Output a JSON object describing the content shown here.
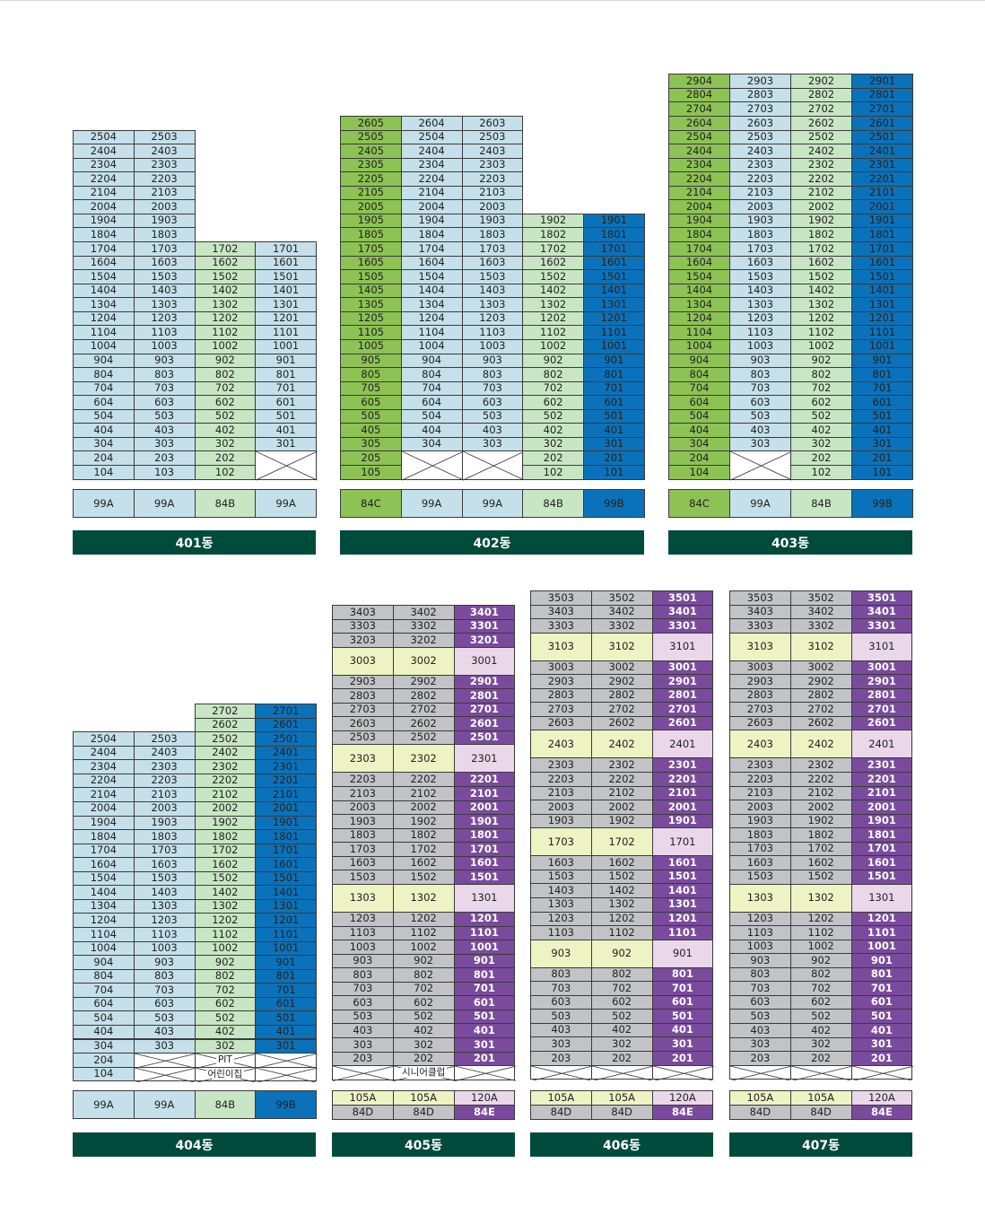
{
  "colors": {
    "lightblue": "#c5e0ea",
    "green": "#8dc254",
    "lightgreen": "#c8e6c3",
    "blue": "#0a72ba",
    "gray": "#c2c3c6",
    "purple": "#7a4b9d",
    "lightyellow": "#eef3c3",
    "lightpurple": "#ead7ea",
    "bar": "#004b3c"
  },
  "buildings": [
    {
      "label": "401동",
      "rows": [
        [
          "2504",
          "2503",
          "",
          ""
        ],
        [
          "2404",
          "2403",
          "",
          ""
        ],
        [
          "2304",
          "2303",
          "",
          ""
        ],
        [
          "2204",
          "2203",
          "",
          ""
        ],
        [
          "2104",
          "2103",
          "",
          ""
        ],
        [
          "2004",
          "2003",
          "",
          ""
        ],
        [
          "1904",
          "1903",
          "",
          ""
        ],
        [
          "1804",
          "1803",
          "",
          ""
        ],
        [
          "1704",
          "1703",
          "1702",
          "1701"
        ],
        [
          "1604",
          "1603",
          "1602",
          "1601"
        ],
        [
          "1504",
          "1503",
          "1502",
          "1501"
        ],
        [
          "1404",
          "1403",
          "1402",
          "1401"
        ],
        [
          "1304",
          "1303",
          "1302",
          "1301"
        ],
        [
          "1204",
          "1203",
          "1202",
          "1201"
        ],
        [
          "1104",
          "1103",
          "1102",
          "1101"
        ],
        [
          "1004",
          "1003",
          "1002",
          "1001"
        ],
        [
          "904",
          "903",
          "902",
          "901"
        ],
        [
          "804",
          "803",
          "802",
          "801"
        ],
        [
          "704",
          "703",
          "702",
          "701"
        ],
        [
          "604",
          "603",
          "602",
          "601"
        ],
        [
          "504",
          "503",
          "502",
          "501"
        ],
        [
          "404",
          "403",
          "402",
          "401"
        ],
        [
          "304",
          "303",
          "302",
          "301"
        ],
        [
          "204",
          "203",
          "202",
          "X"
        ],
        [
          "104",
          "103",
          "102",
          ""
        ]
      ],
      "types": [
        "99A",
        "99A",
        "84B",
        "99A"
      ]
    },
    {
      "label": "402동",
      "rows": [
        [
          "2605",
          "2604",
          "2603",
          "",
          ""
        ],
        [
          "2505",
          "2504",
          "2503",
          "",
          ""
        ],
        [
          "2405",
          "2404",
          "2403",
          "",
          ""
        ],
        [
          "2305",
          "2304",
          "2303",
          "",
          ""
        ],
        [
          "2205",
          "2204",
          "2203",
          "",
          ""
        ],
        [
          "2105",
          "2104",
          "2103",
          "",
          ""
        ],
        [
          "2005",
          "2004",
          "2003",
          "",
          ""
        ],
        [
          "1905",
          "1904",
          "1903",
          "1902",
          "1901"
        ],
        [
          "1805",
          "1804",
          "1803",
          "1802",
          "1801"
        ],
        [
          "1705",
          "1704",
          "1703",
          "1702",
          "1701"
        ],
        [
          "1605",
          "1604",
          "1603",
          "1602",
          "1601"
        ],
        [
          "1505",
          "1504",
          "1503",
          "1502",
          "1501"
        ],
        [
          "1405",
          "1404",
          "1403",
          "1402",
          "1401"
        ],
        [
          "1305",
          "1304",
          "1303",
          "1302",
          "1301"
        ],
        [
          "1205",
          "1204",
          "1203",
          "1202",
          "1201"
        ],
        [
          "1105",
          "1104",
          "1103",
          "1102",
          "1101"
        ],
        [
          "1005",
          "1004",
          "1003",
          "1002",
          "1001"
        ],
        [
          "905",
          "904",
          "903",
          "902",
          "901"
        ],
        [
          "805",
          "804",
          "803",
          "802",
          "801"
        ],
        [
          "705",
          "704",
          "703",
          "702",
          "701"
        ],
        [
          "605",
          "604",
          "603",
          "602",
          "601"
        ],
        [
          "505",
          "504",
          "503",
          "502",
          "501"
        ],
        [
          "405",
          "404",
          "403",
          "402",
          "401"
        ],
        [
          "305",
          "304",
          "303",
          "302",
          "301"
        ],
        [
          "205",
          "X",
          "X",
          "202",
          "201"
        ],
        [
          "105",
          "",
          "",
          "102",
          "101"
        ]
      ],
      "types": [
        "84C",
        "99A",
        "99A",
        "84B",
        "99B"
      ]
    },
    {
      "label": "403동",
      "rows": [
        [
          "2904",
          "2903",
          "2902",
          "2901"
        ],
        [
          "2804",
          "2803",
          "2802",
          "2801"
        ],
        [
          "2704",
          "2703",
          "2702",
          "2701"
        ],
        [
          "2604",
          "2603",
          "2602",
          "2601"
        ],
        [
          "2504",
          "2503",
          "2502",
          "2501"
        ],
        [
          "2404",
          "2403",
          "2402",
          "2401"
        ],
        [
          "2304",
          "2303",
          "2302",
          "2301"
        ],
        [
          "2204",
          "2203",
          "2202",
          "2201"
        ],
        [
          "2104",
          "2103",
          "2102",
          "2101"
        ],
        [
          "2004",
          "2003",
          "2002",
          "2001"
        ],
        [
          "1904",
          "1903",
          "1902",
          "1901"
        ],
        [
          "1804",
          "1803",
          "1802",
          "1801"
        ],
        [
          "1704",
          "1703",
          "1702",
          "1701"
        ],
        [
          "1604",
          "1603",
          "1602",
          "1601"
        ],
        [
          "1504",
          "1503",
          "1502",
          "1501"
        ],
        [
          "1404",
          "1403",
          "1402",
          "1401"
        ],
        [
          "1304",
          "1303",
          "1302",
          "1301"
        ],
        [
          "1204",
          "1203",
          "1202",
          "1201"
        ],
        [
          "1104",
          "1103",
          "1102",
          "1101"
        ],
        [
          "1004",
          "1003",
          "1002",
          "1001"
        ],
        [
          "904",
          "903",
          "902",
          "901"
        ],
        [
          "804",
          "803",
          "802",
          "801"
        ],
        [
          "704",
          "703",
          "702",
          "701"
        ],
        [
          "604",
          "603",
          "602",
          "601"
        ],
        [
          "504",
          "503",
          "502",
          "501"
        ],
        [
          "404",
          "403",
          "402",
          "401"
        ],
        [
          "304",
          "303",
          "302",
          "301"
        ],
        [
          "204",
          "X",
          "202",
          "201"
        ],
        [
          "104",
          "",
          "102",
          "101"
        ]
      ],
      "types": [
        "84C",
        "99A",
        "84B",
        "99B"
      ]
    },
    {
      "label": "404동",
      "rows": [
        [
          "",
          "",
          "2702",
          "2701"
        ],
        [
          "",
          "",
          "2602",
          "2601"
        ],
        [
          "2504",
          "2503",
          "2502",
          "2501"
        ],
        [
          "2404",
          "2403",
          "2402",
          "2401"
        ],
        [
          "2304",
          "2303",
          "2302",
          "2301"
        ],
        [
          "2204",
          "2203",
          "2202",
          "2201"
        ],
        [
          "2104",
          "2103",
          "2102",
          "2101"
        ],
        [
          "2004",
          "2003",
          "2002",
          "2001"
        ],
        [
          "1904",
          "1903",
          "1902",
          "1901"
        ],
        [
          "1804",
          "1803",
          "1802",
          "1801"
        ],
        [
          "1704",
          "1703",
          "1702",
          "1701"
        ],
        [
          "1604",
          "1603",
          "1602",
          "1601"
        ],
        [
          "1504",
          "1503",
          "1502",
          "1501"
        ],
        [
          "1404",
          "1403",
          "1402",
          "1401"
        ],
        [
          "1304",
          "1303",
          "1302",
          "1301"
        ],
        [
          "1204",
          "1203",
          "1202",
          "1201"
        ],
        [
          "1104",
          "1103",
          "1102",
          "1101"
        ],
        [
          "1004",
          "1003",
          "1002",
          "1001"
        ],
        [
          "904",
          "903",
          "902",
          "901"
        ],
        [
          "804",
          "803",
          "802",
          "801"
        ],
        [
          "704",
          "703",
          "702",
          "701"
        ],
        [
          "604",
          "603",
          "602",
          "601"
        ],
        [
          "504",
          "503",
          "502",
          "501"
        ],
        [
          "404",
          "403",
          "402",
          "401"
        ],
        [
          "304",
          "303",
          "302",
          "301"
        ]
      ],
      "pit": "PIT",
      "daycare": "어린이집",
      "first_rows": [
        "204",
        "104"
      ],
      "types": [
        "99A",
        "99A",
        "84B",
        "99B"
      ]
    },
    {
      "label": "405동",
      "rows": [
        [
          "3403",
          "3402",
          "3401"
        ],
        [
          "3303",
          "3302",
          "3301"
        ],
        [
          "3203",
          "3202",
          "3201"
        ],
        [
          "3003",
          "3002",
          "3001"
        ],
        [
          "2903",
          "2902",
          "2901"
        ],
        [
          "2803",
          "2802",
          "2801"
        ],
        [
          "2703",
          "2702",
          "2701"
        ],
        [
          "2603",
          "2602",
          "2601"
        ],
        [
          "2503",
          "2502",
          "2501"
        ],
        [
          "2303",
          "2302",
          "2301"
        ],
        [
          "2203",
          "2202",
          "2201"
        ],
        [
          "2103",
          "2102",
          "2101"
        ],
        [
          "2003",
          "2002",
          "2001"
        ],
        [
          "1903",
          "1902",
          "1901"
        ],
        [
          "1803",
          "1802",
          "1801"
        ],
        [
          "1703",
          "1702",
          "1701"
        ],
        [
          "1603",
          "1602",
          "1601"
        ],
        [
          "1503",
          "1502",
          "1501"
        ],
        [
          "1303",
          "1302",
          "1301"
        ],
        [
          "1203",
          "1202",
          "1201"
        ],
        [
          "1103",
          "1102",
          "1101"
        ],
        [
          "1003",
          "1002",
          "1001"
        ],
        [
          "903",
          "902",
          "901"
        ],
        [
          "803",
          "802",
          "801"
        ],
        [
          "703",
          "702",
          "701"
        ],
        [
          "603",
          "602",
          "601"
        ],
        [
          "503",
          "502",
          "501"
        ],
        [
          "403",
          "402",
          "401"
        ],
        [
          "303",
          "302",
          "301"
        ],
        [
          "203",
          "202",
          "201"
        ]
      ],
      "senior": "시니어클럽",
      "types_top": [
        "105A",
        "105A",
        "120A"
      ],
      "types_bottom": [
        "84D",
        "84D",
        "84E"
      ]
    },
    {
      "label": "406동",
      "rows": [
        [
          "3503",
          "3502",
          "3501"
        ],
        [
          "3403",
          "3402",
          "3401"
        ],
        [
          "3303",
          "3302",
          "3301"
        ],
        [
          "3103",
          "3102",
          "3101"
        ],
        [
          "3003",
          "3002",
          "3001"
        ],
        [
          "2903",
          "2902",
          "2901"
        ],
        [
          "2803",
          "2802",
          "2801"
        ],
        [
          "2703",
          "2702",
          "2701"
        ],
        [
          "2603",
          "2602",
          "2601"
        ],
        [
          "2403",
          "2402",
          "2401"
        ],
        [
          "2303",
          "2302",
          "2301"
        ],
        [
          "2203",
          "2202",
          "2201"
        ],
        [
          "2103",
          "2102",
          "2101"
        ],
        [
          "2003",
          "2002",
          "2001"
        ],
        [
          "1903",
          "1902",
          "1901"
        ],
        [
          "1703",
          "1702",
          "1701"
        ],
        [
          "1603",
          "1602",
          "1601"
        ],
        [
          "1503",
          "1502",
          "1501"
        ],
        [
          "1403",
          "1402",
          "1401"
        ],
        [
          "1303",
          "1302",
          "1301"
        ],
        [
          "1203",
          "1202",
          "1201"
        ],
        [
          "1103",
          "1102",
          "1101"
        ],
        [
          "903",
          "902",
          "901"
        ],
        [
          "803",
          "802",
          "801"
        ],
        [
          "703",
          "702",
          "701"
        ],
        [
          "603",
          "602",
          "601"
        ],
        [
          "503",
          "502",
          "501"
        ],
        [
          "403",
          "402",
          "401"
        ],
        [
          "303",
          "302",
          "301"
        ],
        [
          "203",
          "202",
          "201"
        ]
      ],
      "types_top": [
        "105A",
        "105A",
        "120A"
      ],
      "types_bottom": [
        "84D",
        "84D",
        "84E"
      ]
    },
    {
      "label": "407동",
      "rows": [
        [
          "3503",
          "3502",
          "3501"
        ],
        [
          "3403",
          "3402",
          "3401"
        ],
        [
          "3303",
          "3302",
          "3301"
        ],
        [
          "3103",
          "3102",
          "3101"
        ],
        [
          "3003",
          "3002",
          "3001"
        ],
        [
          "2903",
          "2902",
          "2901"
        ],
        [
          "2803",
          "2802",
          "2801"
        ],
        [
          "2703",
          "2702",
          "2701"
        ],
        [
          "2603",
          "2602",
          "2601"
        ],
        [
          "2403",
          "2402",
          "2401"
        ],
        [
          "2303",
          "2302",
          "2301"
        ],
        [
          "2203",
          "2202",
          "2201"
        ],
        [
          "2103",
          "2102",
          "2101"
        ],
        [
          "2003",
          "2002",
          "2001"
        ],
        [
          "1903",
          "1902",
          "1901"
        ],
        [
          "1803",
          "1802",
          "1801"
        ],
        [
          "1703",
          "1702",
          "1701"
        ],
        [
          "1603",
          "1602",
          "1601"
        ],
        [
          "1503",
          "1502",
          "1501"
        ],
        [
          "1303",
          "1302",
          "1301"
        ],
        [
          "1203",
          "1202",
          "1201"
        ],
        [
          "1103",
          "1102",
          "1101"
        ],
        [
          "1003",
          "1002",
          "1001"
        ],
        [
          "903",
          "902",
          "901"
        ],
        [
          "803",
          "802",
          "801"
        ],
        [
          "703",
          "702",
          "701"
        ],
        [
          "603",
          "602",
          "601"
        ],
        [
          "503",
          "502",
          "501"
        ],
        [
          "403",
          "402",
          "401"
        ],
        [
          "303",
          "302",
          "301"
        ],
        [
          "203",
          "202",
          "201"
        ]
      ],
      "types_top": [
        "105A",
        "105A",
        "120A"
      ],
      "types_bottom": [
        "84D",
        "84D",
        "84E"
      ]
    }
  ]
}
